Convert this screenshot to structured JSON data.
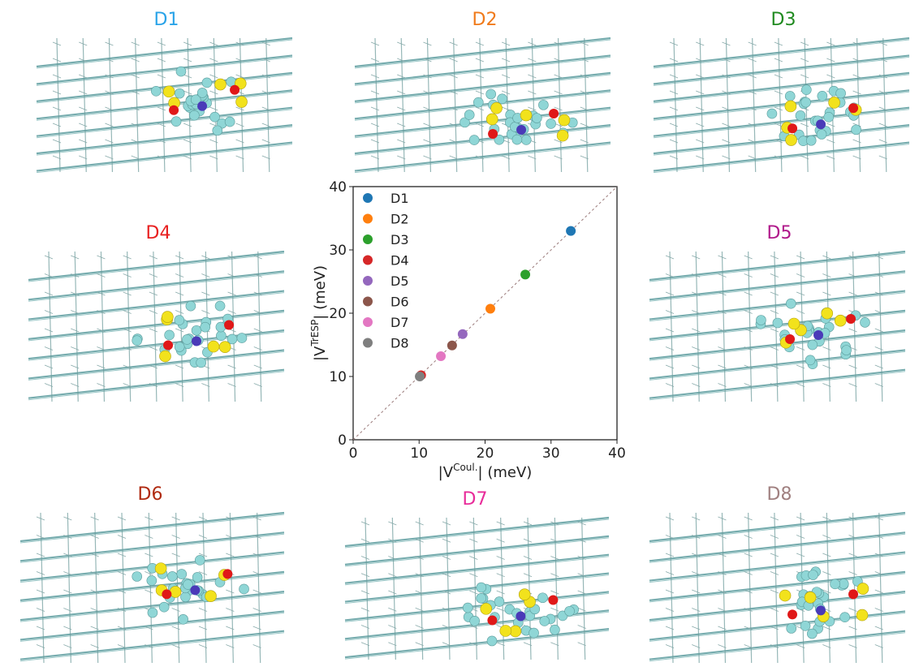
{
  "panels": [
    {
      "id": "D1",
      "label": "D1",
      "color": "#29a3e8"
    },
    {
      "id": "D2",
      "label": "D2",
      "color": "#f07a1a"
    },
    {
      "id": "D3",
      "label": "D3",
      "color": "#1f8a1f"
    },
    {
      "id": "D4",
      "label": "D4",
      "color": "#e82020"
    },
    {
      "id": "D5",
      "label": "D5",
      "color": "#b0188a"
    },
    {
      "id": "D6",
      "label": "D6",
      "color": "#b02a10"
    },
    {
      "id": "D7",
      "label": "D7",
      "color": "#e82c9a"
    },
    {
      "id": "D8",
      "label": "D8",
      "color": "#a08080"
    }
  ],
  "chart_data": {
    "type": "scatter",
    "title": "",
    "xlabel": "|V^Coul.| (meV)",
    "ylabel": "|V^TrESP| (meV)",
    "xlabel_main": "|V",
    "xlabel_sup": "Coul.",
    "xlabel_tail": "| (meV)",
    "ylabel_main": "|V",
    "ylabel_sup": "TrESP",
    "ylabel_tail": "| (meV)",
    "xlim": [
      0,
      40
    ],
    "ylim": [
      0,
      40
    ],
    "xticks": [
      "0",
      "10",
      "20",
      "30",
      "40"
    ],
    "yticks": [
      "0",
      "10",
      "20",
      "30",
      "40"
    ],
    "grid": false,
    "legend_position": "top-left",
    "diagonal_line": true,
    "series": [
      {
        "name": "D1",
        "color": "#1f77b4",
        "x": 33.0,
        "y": 33.0
      },
      {
        "name": "D2",
        "color": "#ff7f0e",
        "x": 20.8,
        "y": 20.7
      },
      {
        "name": "D3",
        "color": "#2ca02c",
        "x": 26.1,
        "y": 26.1
      },
      {
        "name": "D4",
        "color": "#d62728",
        "x": 10.3,
        "y": 10.2
      },
      {
        "name": "D5",
        "color": "#9467bd",
        "x": 16.6,
        "y": 16.7
      },
      {
        "name": "D6",
        "color": "#8c564b",
        "x": 15.0,
        "y": 14.9
      },
      {
        "name": "D7",
        "color": "#e377c2",
        "x": 13.3,
        "y": 13.2
      },
      {
        "name": "D8",
        "color": "#7f7f7f",
        "x": 10.1,
        "y": 10.0
      }
    ]
  }
}
